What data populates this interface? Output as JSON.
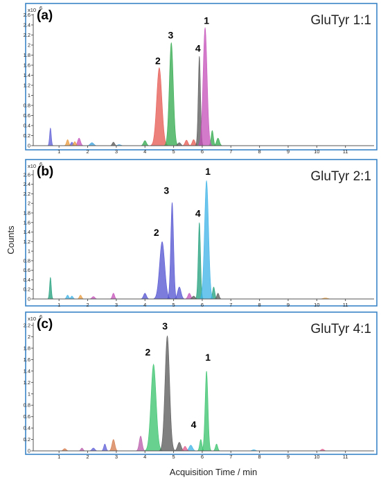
{
  "y_axis_title": "Counts",
  "x_axis_title": "Acquisition Time / min",
  "multiplier_label": "x10",
  "multiplier_exponent": "6",
  "chart_data": [
    {
      "type": "area",
      "panel": "(a)",
      "sample": "GluTyr 1:1",
      "x_ticks": [
        "1",
        "2",
        "3",
        "4",
        "5",
        "6",
        "7",
        "8",
        "9",
        "10",
        "11"
      ],
      "y_ticks": [
        "0",
        "0.2",
        "0.4",
        "0.6",
        "0.8",
        "1",
        "1.2",
        "1.4",
        "1.6",
        "1.8",
        "2",
        "2.2",
        "2.4",
        "2.6"
      ],
      "xlim": [
        0.1,
        12
      ],
      "ylim": [
        0,
        2.62
      ],
      "grid": false,
      "peak_labels": [
        {
          "text": "2",
          "x": 4.45,
          "y": 1.62
        },
        {
          "text": "3",
          "x": 4.9,
          "y": 2.13
        },
        {
          "text": "4",
          "x": 5.85,
          "y": 1.87
        },
        {
          "text": "1",
          "x": 6.15,
          "y": 2.42
        }
      ],
      "series": [
        {
          "color": "#e6554f",
          "peaks": [
            {
              "x": 4.5,
              "y": 1.55,
              "w": 0.09
            },
            {
              "x": 5.45,
              "y": 0.11,
              "w": 0.05
            },
            {
              "x": 5.7,
              "y": 0.12,
              "w": 0.05
            }
          ]
        },
        {
          "color": "#2fa84a",
          "peaks": [
            {
              "x": 4.92,
              "y": 2.05,
              "w": 0.07
            },
            {
              "x": 4.0,
              "y": 0.1,
              "w": 0.05
            },
            {
              "x": 6.35,
              "y": 0.3,
              "w": 0.04
            },
            {
              "x": 6.55,
              "y": 0.15,
              "w": 0.05
            }
          ]
        },
        {
          "color": "#555555",
          "peaks": [
            {
              "x": 5.9,
              "y": 1.78,
              "w": 0.04
            },
            {
              "x": 2.9,
              "y": 0.07,
              "w": 0.04
            },
            {
              "x": 5.2,
              "y": 0.06,
              "w": 0.05
            }
          ]
        },
        {
          "color": "#c44fb8",
          "peaks": [
            {
              "x": 6.1,
              "y": 2.35,
              "w": 0.07
            },
            {
              "x": 1.7,
              "y": 0.15,
              "w": 0.05
            }
          ]
        },
        {
          "color": "#5b5bd6",
          "peaks": [
            {
              "x": 0.7,
              "y": 0.35,
              "w": 0.03
            },
            {
              "x": 1.45,
              "y": 0.07,
              "w": 0.04
            }
          ]
        },
        {
          "color": "#e99a3a",
          "peaks": [
            {
              "x": 1.3,
              "y": 0.12,
              "w": 0.04
            },
            {
              "x": 1.55,
              "y": 0.08,
              "w": 0.04
            }
          ]
        },
        {
          "color": "#3aa0dd",
          "peaks": [
            {
              "x": 2.15,
              "y": 0.06,
              "w": 0.06
            },
            {
              "x": 3.1,
              "y": 0.02,
              "w": 0.06
            }
          ]
        }
      ]
    },
    {
      "type": "area",
      "panel": "(b)",
      "sample": "GluTyr 2:1",
      "x_ticks": [
        "1",
        "2",
        "3",
        "4",
        "5",
        "6",
        "7",
        "8",
        "9",
        "10",
        "11"
      ],
      "y_ticks": [
        "0",
        "0.2",
        "0.4",
        "0.6",
        "0.8",
        "1",
        "1.2",
        "1.4",
        "1.6",
        "1.8",
        "2",
        "2.2",
        "2.4",
        "2.6"
      ],
      "xlim": [
        0.1,
        12
      ],
      "ylim": [
        0,
        2.7
      ],
      "grid": false,
      "peak_labels": [
        {
          "text": "2",
          "x": 4.4,
          "y": 1.32
        },
        {
          "text": "3",
          "x": 4.75,
          "y": 2.2
        },
        {
          "text": "4",
          "x": 5.85,
          "y": 1.72
        },
        {
          "text": "1",
          "x": 6.2,
          "y": 2.6
        }
      ],
      "series": [
        {
          "color": "#5050d0",
          "peaks": [
            {
              "x": 4.6,
              "y": 1.2,
              "w": 0.09
            },
            {
              "x": 4.95,
              "y": 2.02,
              "w": 0.05
            },
            {
              "x": 5.2,
              "y": 0.25,
              "w": 0.06
            },
            {
              "x": 4.0,
              "y": 0.12,
              "w": 0.05
            }
          ]
        },
        {
          "color": "#1e9e7a",
          "peaks": [
            {
              "x": 5.9,
              "y": 1.6,
              "w": 0.04
            },
            {
              "x": 0.7,
              "y": 0.45,
              "w": 0.03
            },
            {
              "x": 6.4,
              "y": 0.25,
              "w": 0.04
            }
          ]
        },
        {
          "color": "#3ab1e6",
          "peaks": [
            {
              "x": 6.15,
              "y": 2.48,
              "w": 0.07
            },
            {
              "x": 1.3,
              "y": 0.08,
              "w": 0.04
            },
            {
              "x": 1.45,
              "y": 0.06,
              "w": 0.04
            }
          ]
        },
        {
          "color": "#c44fb8",
          "peaks": [
            {
              "x": 2.9,
              "y": 0.12,
              "w": 0.04
            },
            {
              "x": 5.55,
              "y": 0.12,
              "w": 0.05
            },
            {
              "x": 2.2,
              "y": 0.05,
              "w": 0.05
            }
          ]
        },
        {
          "color": "#e99a3a",
          "peaks": [
            {
              "x": 1.75,
              "y": 0.08,
              "w": 0.04
            },
            {
              "x": 10.3,
              "y": 0.02,
              "w": 0.08
            }
          ]
        },
        {
          "color": "#555555",
          "peaks": [
            {
              "x": 6.55,
              "y": 0.12,
              "w": 0.04
            },
            {
              "x": 5.7,
              "y": 0.06,
              "w": 0.05
            }
          ]
        }
      ]
    },
    {
      "type": "area",
      "panel": "(c)",
      "sample": "GluTyr 4:1",
      "x_ticks": [
        "1",
        "2",
        "3",
        "4",
        "5",
        "6",
        "7",
        "8",
        "9",
        "10",
        "11"
      ],
      "y_ticks": [
        "0",
        "0.2",
        "0.4",
        "0.6",
        "0.8",
        "1",
        "1.2",
        "1.4",
        "1.6",
        "1.8",
        "2",
        "2.2"
      ],
      "xlim": [
        0.1,
        12
      ],
      "ylim": [
        0,
        2.25
      ],
      "grid": false,
      "peak_labels": [
        {
          "text": "2",
          "x": 4.1,
          "y": 1.67
        },
        {
          "text": "3",
          "x": 4.7,
          "y": 2.13
        },
        {
          "text": "1",
          "x": 6.2,
          "y": 1.58
        },
        {
          "text": "4",
          "x": 5.7,
          "y": 0.4
        }
      ],
      "series": [
        {
          "color": "#36c26a",
          "peaks": [
            {
              "x": 4.3,
              "y": 1.52,
              "w": 0.09
            },
            {
              "x": 6.15,
              "y": 1.4,
              "w": 0.05
            },
            {
              "x": 6.5,
              "y": 0.12,
              "w": 0.04
            },
            {
              "x": 5.95,
              "y": 0.2,
              "w": 0.04
            }
          ]
        },
        {
          "color": "#555555",
          "peaks": [
            {
              "x": 4.78,
              "y": 2.02,
              "w": 0.08
            },
            {
              "x": 5.2,
              "y": 0.15,
              "w": 0.06
            }
          ]
        },
        {
          "color": "#b85aa8",
          "peaks": [
            {
              "x": 3.85,
              "y": 0.26,
              "w": 0.05
            },
            {
              "x": 1.8,
              "y": 0.05,
              "w": 0.04
            }
          ]
        },
        {
          "color": "#d47a4a",
          "peaks": [
            {
              "x": 2.9,
              "y": 0.2,
              "w": 0.05
            },
            {
              "x": 1.2,
              "y": 0.04,
              "w": 0.05
            }
          ]
        },
        {
          "color": "#5b5bd6",
          "peaks": [
            {
              "x": 2.6,
              "y": 0.12,
              "w": 0.04
            },
            {
              "x": 2.2,
              "y": 0.05,
              "w": 0.05
            }
          ]
        },
        {
          "color": "#3ab1e6",
          "peaks": [
            {
              "x": 5.6,
              "y": 0.1,
              "w": 0.06
            },
            {
              "x": 7.8,
              "y": 0.02,
              "w": 0.06
            }
          ]
        },
        {
          "color": "#e0558a",
          "peaks": [
            {
              "x": 10.2,
              "y": 0.03,
              "w": 0.05
            },
            {
              "x": 5.4,
              "y": 0.08,
              "w": 0.05
            }
          ]
        }
      ]
    }
  ]
}
